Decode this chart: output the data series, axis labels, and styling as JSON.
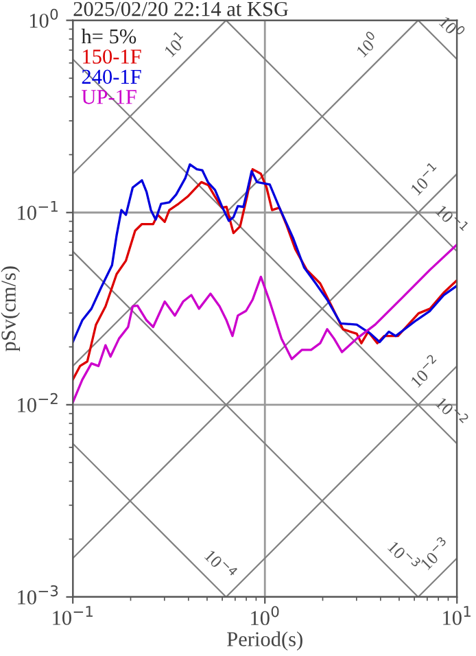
{
  "chart_data": {
    "type": "line",
    "title": "2025/02/20 22:14 at KSG",
    "xlabel": "Period(s)",
    "ylabel": "pSv(cm/s)",
    "legend_title": "h= 5%",
    "legend": "top left",
    "log": "xy",
    "grid": true,
    "xlim": [
      0.1,
      10
    ],
    "ylim": [
      0.001,
      1
    ],
    "xticks": [
      {
        "value": 0.1,
        "label": "10$^{−1}$"
      },
      {
        "value": 1,
        "label": "10$^{0}$"
      },
      {
        "value": 10,
        "label": "10$^{1}$"
      }
    ],
    "yticks": [
      {
        "value": 0.001,
        "label": "10$^{−3}$"
      },
      {
        "value": 0.01,
        "label": "10$^{−2}$"
      },
      {
        "value": 0.1,
        "label": "10$^{−1}$"
      },
      {
        "value": 1,
        "label": "10$^{0}$"
      }
    ],
    "series": [
      {
        "color": "#808080",
        "x": [
          0.1,
          0.628
        ],
        "values": [
          0.159,
          1
        ]
      },
      {
        "color": "#808080",
        "x": [
          0.1,
          6.28
        ],
        "values": [
          0.0159,
          1
        ]
      },
      {
        "color": "#808080",
        "x": [
          0.1,
          10
        ],
        "values": [
          0.00159,
          0.159
        ]
      },
      {
        "color": "#808080",
        "x": [
          0.628,
          10
        ],
        "values": [
          0.001,
          0.0159
        ]
      },
      {
        "color": "#808080",
        "x": [
          6.28,
          10
        ],
        "values": [
          0.001,
          0.00159
        ]
      },
      {
        "color": "#808080",
        "x": [
          6.28,
          10
        ],
        "values": [
          1,
          0.628
        ]
      },
      {
        "color": "#808080",
        "x": [
          0.628,
          10
        ],
        "values": [
          1,
          0.0628
        ]
      },
      {
        "color": "#808080",
        "x": [
          0.1,
          10
        ],
        "values": [
          0.628,
          0.00628
        ]
      },
      {
        "color": "#808080",
        "x": [
          0.1,
          6.28
        ],
        "values": [
          0.0628,
          0.001
        ]
      },
      {
        "color": "#808080",
        "x": [
          0.1,
          0.628
        ],
        "values": [
          0.00628,
          0.001
        ]
      },
      {
        "name": "150-1F",
        "color": "#dd0000",
        "x": [
          0.1,
          0.109,
          0.119,
          0.132,
          0.148,
          0.169,
          0.189,
          0.211,
          0.229,
          0.262,
          0.277,
          0.301,
          0.318,
          0.355,
          0.396,
          0.418,
          0.467,
          0.507,
          0.55,
          0.597,
          0.631,
          0.686,
          0.743,
          0.807,
          0.863,
          0.953,
          1.02,
          1.09,
          1.19,
          1.29,
          1.44,
          1.65,
          1.94,
          2.23,
          2.55,
          3.01,
          3.18,
          3.45,
          3.85,
          4.18,
          4.93,
          6.31,
          7.24,
          8.53,
          10
        ],
        "values": [
          0.0135,
          0.0159,
          0.0168,
          0.0261,
          0.0325,
          0.0478,
          0.0562,
          0.0804,
          0.0871,
          0.0871,
          0.0973,
          0.0895,
          0.103,
          0.111,
          0.121,
          0.128,
          0.144,
          0.139,
          0.121,
          0.106,
          0.107,
          0.0782,
          0.0847,
          0.121,
          0.168,
          0.159,
          0.135,
          0.103,
          0.106,
          0.0871,
          0.0644,
          0.0504,
          0.0428,
          0.0325,
          0.0247,
          0.0234,
          0.0209,
          0.024,
          0.0209,
          0.0228,
          0.0228,
          0.0299,
          0.0316,
          0.0383,
          0.0444
        ]
      },
      {
        "name": "240-1F",
        "color": "#0000dd",
        "x": [
          0.1,
          0.112,
          0.125,
          0.14,
          0.16,
          0.169,
          0.179,
          0.189,
          0.205,
          0.229,
          0.242,
          0.255,
          0.27,
          0.288,
          0.318,
          0.345,
          0.385,
          0.407,
          0.442,
          0.472,
          0.507,
          0.55,
          0.597,
          0.649,
          0.686,
          0.723,
          0.773,
          0.807,
          0.853,
          0.91,
          1.06,
          1.19,
          1.4,
          1.6,
          1.84,
          2.11,
          2.48,
          3.01,
          3.55,
          3.96,
          4.42,
          4.8,
          6.14,
          7.24,
          8.53,
          10
        ],
        "values": [
          0.0212,
          0.0275,
          0.0316,
          0.0405,
          0.0532,
          0.076,
          0.103,
          0.0973,
          0.135,
          0.147,
          0.128,
          0.103,
          0.092,
          0.111,
          0.113,
          0.124,
          0.151,
          0.178,
          0.168,
          0.166,
          0.143,
          0.131,
          0.108,
          0.0905,
          0.0946,
          0.108,
          0.107,
          0.128,
          0.164,
          0.144,
          0.14,
          0.106,
          0.074,
          0.0518,
          0.0428,
          0.0352,
          0.0265,
          0.0261,
          0.0234,
          0.0212,
          0.024,
          0.0228,
          0.0275,
          0.0308,
          0.0372,
          0.0416
        ]
      },
      {
        "name": "UP-1F",
        "color": "#cc00cc",
        "x": [
          0.1,
          0.112,
          0.125,
          0.136,
          0.148,
          0.157,
          0.174,
          0.194,
          0.205,
          0.217,
          0.242,
          0.262,
          0.301,
          0.34,
          0.375,
          0.414,
          0.454,
          0.521,
          0.581,
          0.631,
          0.678,
          0.723,
          0.798,
          0.863,
          0.953,
          1.06,
          1.22,
          1.38,
          1.56,
          1.74,
          1.94,
          2.11,
          2.29,
          2.52,
          3.01,
          3.75,
          5.21,
          7.24,
          10
        ],
        "values": [
          0.0103,
          0.0135,
          0.0164,
          0.0159,
          0.0204,
          0.0178,
          0.0221,
          0.0254,
          0.0325,
          0.0328,
          0.0275,
          0.0254,
          0.0344,
          0.0291,
          0.0344,
          0.0372,
          0.0316,
          0.0378,
          0.0325,
          0.0275,
          0.0228,
          0.0291,
          0.0308,
          0.0352,
          0.0463,
          0.0344,
          0.0221,
          0.0173,
          0.0193,
          0.0193,
          0.0209,
          0.0247,
          0.0221,
          0.0188,
          0.0221,
          0.0261,
          0.0362,
          0.0504,
          0.0681
        ]
      }
    ],
    "annotations": [
      {
        "text": "10$^{1}$",
        "x": 0.4,
        "y": 0.637
      },
      {
        "text": "10$^{0}$",
        "x": 4.0,
        "y": 0.637
      },
      {
        "text": "10$^{0}$",
        "x": 8.0,
        "y": 0.785
      },
      {
        "text": "10$^{−1}$",
        "x": 8.0,
        "y": 0.127
      },
      {
        "text": "10$^{−1}$",
        "x": 8.0,
        "y": 0.0785
      },
      {
        "text": "10$^{−2}$",
        "x": 8.0,
        "y": 0.0127
      },
      {
        "text": "10$^{−2}$",
        "x": 8.0,
        "y": 0.00785
      },
      {
        "text": "10$^{−3}$",
        "x": 4.5,
        "y": 0.0014
      },
      {
        "text": "10$^{−3}$",
        "x": 9.0,
        "y": 0.00143
      },
      {
        "text": "10$^{−4}$",
        "x": 0.5,
        "y": 0.00126
      }
    ]
  }
}
